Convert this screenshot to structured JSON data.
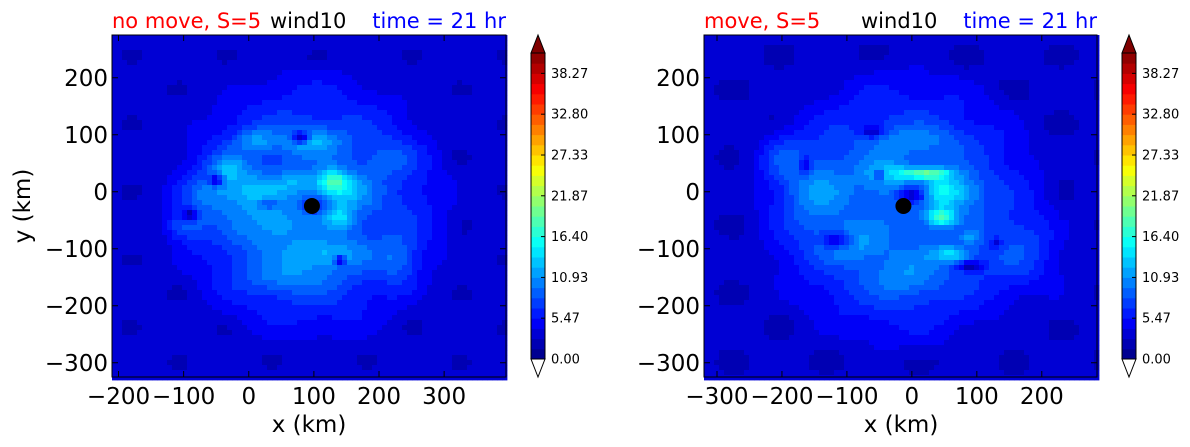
{
  "chart_data": [
    {
      "type": "heatmap",
      "title_left": "no move, S=5",
      "title_center": "wind10",
      "title_right": "time = 21 hr",
      "xlabel": "x (km)",
      "ylabel": "y (km)",
      "xlim": [
        -210,
        395
      ],
      "ylim": [
        -325,
        275
      ],
      "xticks": [
        -200,
        -100,
        0,
        100,
        200,
        300
      ],
      "xtick_labels": [
        "−200",
        "−100",
        "0",
        "100",
        "200",
        "300"
      ],
      "yticks": [
        200,
        100,
        0,
        -100,
        -200,
        -300
      ],
      "ytick_labels": [
        "200",
        "100",
        "0",
        "−100",
        "−200",
        "−300"
      ],
      "center": {
        "x": 97,
        "y": -25
      },
      "field": {
        "env_center": [
          95,
          -25
        ],
        "rx": 235,
        "ry": 260,
        "background": 3.2,
        "blobs": [
          [
            130,
            18,
            22,
            20,
            8
          ],
          [
            150,
            0,
            35,
            30,
            4
          ],
          [
            75,
            15,
            35,
            18,
            3
          ],
          [
            140,
            -45,
            20,
            20,
            5
          ],
          [
            95,
            90,
            45,
            22,
            5
          ],
          [
            10,
            90,
            30,
            20,
            4
          ],
          [
            -30,
            40,
            28,
            28,
            5
          ],
          [
            120,
            -110,
            60,
            25,
            4
          ],
          [
            60,
            -150,
            70,
            30,
            3
          ],
          [
            -100,
            -60,
            30,
            25,
            4
          ],
          [
            -60,
            -5,
            40,
            35,
            4
          ],
          [
            30,
            -60,
            60,
            40,
            3
          ],
          [
            10,
            0,
            40,
            30,
            4
          ],
          [
            220,
            60,
            40,
            30,
            2
          ],
          [
            230,
            -120,
            30,
            40,
            3
          ]
        ],
        "holes": [
          [
            80,
            95,
            14,
            10,
            9
          ],
          [
            -50,
            20,
            12,
            10,
            7
          ],
          [
            -90,
            -40,
            12,
            10,
            6
          ],
          [
            140,
            -120,
            8,
            8,
            8
          ],
          [
            30,
            -20,
            15,
            10,
            4
          ],
          [
            100,
            -25,
            18,
            14,
            4
          ]
        ]
      },
      "colorbar": {
        "ticks": [
          "0.00",
          "5.47",
          "10.93",
          "16.40",
          "21.87",
          "27.33",
          "32.80",
          "38.27"
        ],
        "min": 0,
        "max": 41,
        "levels": 30,
        "extend": "both"
      }
    },
    {
      "type": "heatmap",
      "title_left": "move, S=5",
      "title_center": "wind10",
      "title_right": "time = 21 hr",
      "xlabel": "x (km)",
      "ylabel": "",
      "xlim": [
        -320,
        285
      ],
      "ylim": [
        -325,
        275
      ],
      "xticks": [
        -300,
        -200,
        -100,
        0,
        100,
        200
      ],
      "xtick_labels": [
        "−300",
        "−200",
        "−100",
        "0",
        "100",
        "200"
      ],
      "yticks": [
        200,
        100,
        0,
        -100,
        -200,
        -300
      ],
      "ytick_labels": [
        "200",
        "100",
        "0",
        "−100",
        "−200",
        "−300"
      ],
      "center": {
        "x": -13,
        "y": -25
      },
      "field": {
        "env_center": [
          -15,
          -30
        ],
        "rx": 245,
        "ry": 270,
        "background": 3.0,
        "blobs": [
          [
            20,
            32,
            40,
            10,
            10
          ],
          [
            45,
            0,
            25,
            30,
            6
          ],
          [
            45,
            -45,
            22,
            15,
            9
          ],
          [
            80,
            0,
            30,
            30,
            4
          ],
          [
            -40,
            30,
            40,
            30,
            4
          ],
          [
            -150,
            0,
            50,
            60,
            4
          ],
          [
            60,
            -110,
            30,
            15,
            6
          ],
          [
            -10,
            -150,
            60,
            40,
            3
          ],
          [
            -100,
            -90,
            50,
            30,
            4
          ],
          [
            180,
            -110,
            60,
            70,
            3
          ],
          [
            0,
            90,
            70,
            25,
            3
          ],
          [
            -200,
            60,
            40,
            40,
            3
          ],
          [
            90,
            -80,
            15,
            10,
            4
          ]
        ],
        "holes": [
          [
            0,
            -5,
            22,
            15,
            7
          ],
          [
            -115,
            -85,
            25,
            15,
            7
          ],
          [
            -50,
            30,
            8,
            10,
            6
          ],
          [
            -165,
            45,
            10,
            18,
            5
          ],
          [
            90,
            -130,
            20,
            8,
            6
          ],
          [
            -60,
            105,
            18,
            10,
            5
          ],
          [
            130,
            -90,
            10,
            10,
            4
          ]
        ]
      },
      "colorbar": {
        "ticks": [
          "0.00",
          "5.47",
          "10.93",
          "16.40",
          "21.87",
          "27.33",
          "32.80",
          "38.27"
        ],
        "min": 0,
        "max": 41,
        "levels": 30,
        "extend": "both"
      }
    }
  ]
}
